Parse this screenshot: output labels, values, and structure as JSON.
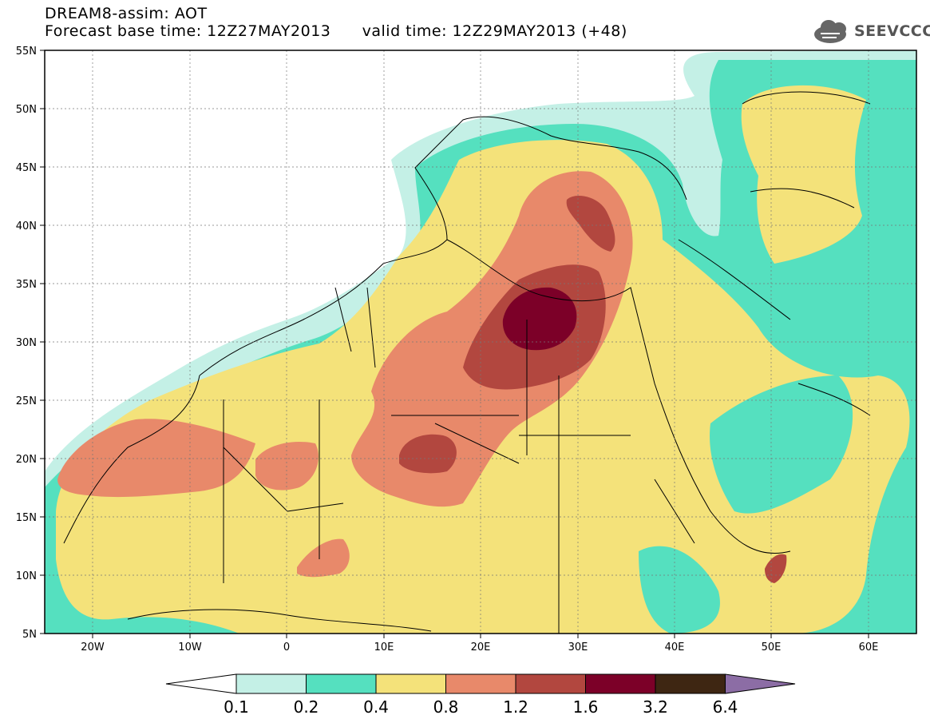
{
  "header": {
    "line1": "DREAM8-assim: AOT",
    "line2": "Forecast base time: 12Z27MAY2013      valid time: 12Z29MAY2013 (+48)"
  },
  "logo": {
    "text": "SEEVCCC",
    "icon": "cloud-icon"
  },
  "map": {
    "lon_range": [
      -25,
      65
    ],
    "lat_range": [
      5,
      55
    ],
    "lat_labels": [
      "55N",
      "50N",
      "45N",
      "40N",
      "35N",
      "30N",
      "25N",
      "20N",
      "15N",
      "10N",
      "5N"
    ],
    "lon_labels": [
      "20W",
      "10W",
      "0",
      "10E",
      "20E",
      "30E",
      "40E",
      "50E",
      "60E"
    ]
  },
  "legend": {
    "levels": [
      "0.1",
      "0.2",
      "0.4",
      "0.8",
      "1.2",
      "1.6",
      "3.2",
      "6.4"
    ],
    "colors": [
      "#ffffff",
      "#c4f0e6",
      "#55e0bf",
      "#f4e27a",
      "#e8896a",
      "#b2473f",
      "#7c0028",
      "#3e2612",
      "#8c6da5"
    ]
  }
}
